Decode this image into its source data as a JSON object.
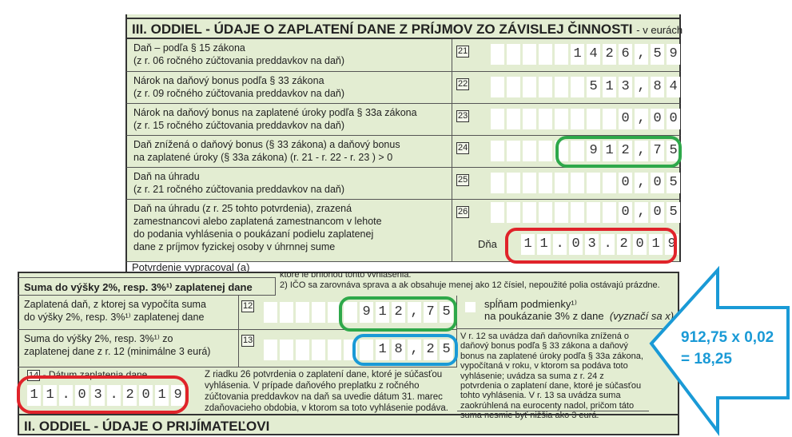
{
  "top": {
    "title": "III. ODDIEL - ÚDAJE O ZAPLATENÍ DANE Z PRÍJMOV ZO ZÁVISLEJ ČINNOSTI",
    "unit": "- v eurách",
    "rows": [
      {
        "num": "21",
        "line1": "Daň – podľa § 15 zákona",
        "line2": "(z r. 06 ročného zúčtovania preddavkov na daň)",
        "value": "1426,59"
      },
      {
        "num": "22",
        "line1": "Nárok na daňový bonus podľa § 33 zákona",
        "line2": "(z r. 09 ročného zúčtovania preddavkov na daň)",
        "value": "513,84"
      },
      {
        "num": "23",
        "line1": "Nárok na daňový bonus na zaplatené úroky podľa § 33a zákona",
        "line2": "(z r. 15 ročného zúčtovania preddavkov na daň)",
        "value": "0,00"
      },
      {
        "num": "24",
        "line1": "Daň znížená o daňový bonus (§ 33 zákona) a daňový bonus",
        "line2": "na zaplatené úroky (§ 33a zákona)    (r. 21 - r. 22 - r. 23 ) > 0",
        "value": "912,75"
      },
      {
        "num": "25",
        "line1": "Daň na úhradu",
        "line2": "(z r. 21 ročného zúčtovania preddavkov na daň)",
        "value": "0,05"
      },
      {
        "num": "26",
        "line1": "Daň na úhradu (z r. 25 tohto potvrdenia), zrazená",
        "line2": "zamestnancovi alebo zaplatená zamestnancom v lehote",
        "line3": "do podania vyhlásenia o poukázaní podielu zaplatenej",
        "line4": "dane z príjmov fyzickej osoby v úhrnnej sume",
        "value": "0,05"
      }
    ],
    "date_label": "Dňa",
    "date": "11.03.2019",
    "footer": "Potvrdenie vypracoval (a)"
  },
  "bottom": {
    "cut_text": "ktoré je prílohou tohto vyhlásenia.",
    "title": "Suma do výšky 2%, resp. 3%¹⁾ zaplatenej dane",
    "ico_note": "2) IČO sa zarovnáva sprava a ak obsahuje menej ako 12 čísiel, nepoužité polia ostávajú prázdne.",
    "r12": {
      "num": "12",
      "line1": "Zaplatená daň, z ktorej sa vypočíta suma",
      "line2": "do výšky 2%, resp. 3%¹⁾ zaplatenej dane",
      "value": "912,75"
    },
    "r13": {
      "num": "13",
      "line1": "Suma do výšky 2%, resp. 3%¹⁾ zo",
      "line2": "zaplatenej dane z r. 12 (minimálne 3 eurá)",
      "value": "18,25"
    },
    "checkbox": {
      "line1": "spĺňam podmienky¹⁾",
      "line2": "na poukázanie 3% z dane",
      "hint": "(vyznačí sa x)",
      "checked": false
    },
    "r14": {
      "num": "14",
      "label": "- Dátum zaplatenia dane",
      "date": "11.03.2019"
    },
    "r14_note": "Z riadku 26 potvrdenia o zaplatení dane, ktoré je súčasťou vyhlásenia. V prípade daňového preplatku z ročného zúčtovania preddavkov na daň sa uvedie dátum 31. marec zdaňovacieho obdobia, v ktorom sa toto vyhlásenie podáva.",
    "right_note": "V r. 12 sa uvádza daň daňovníka znížená o daňový bonus podľa § 33 zákona a daňový bonus na zaplatené úroky podľa § 33a zákona, vypočítaná v roku, v ktorom sa podáva toto vyhlásenie; uvádza sa suma z r. 24 z potvrdenia o zaplatení dane, ktoré je súčasťou tohto vyhlásenia. V r. 13 sa uvádza suma zaokrúhlená na eurocenty nadol, pričom táto suma nesmie byť nižšia ako 3 eurá.",
    "section2": "II. ODDIEL - ÚDAJE O PRIJÍMATEĽOVI"
  },
  "annotation": {
    "line1": "912,75 x 0,02",
    "line2": "= 18,25"
  },
  "colors": {
    "form_bg": "#e3edd2",
    "green": "#2ea84a",
    "red": "#e0232a",
    "blue": "#1a9ad6"
  }
}
